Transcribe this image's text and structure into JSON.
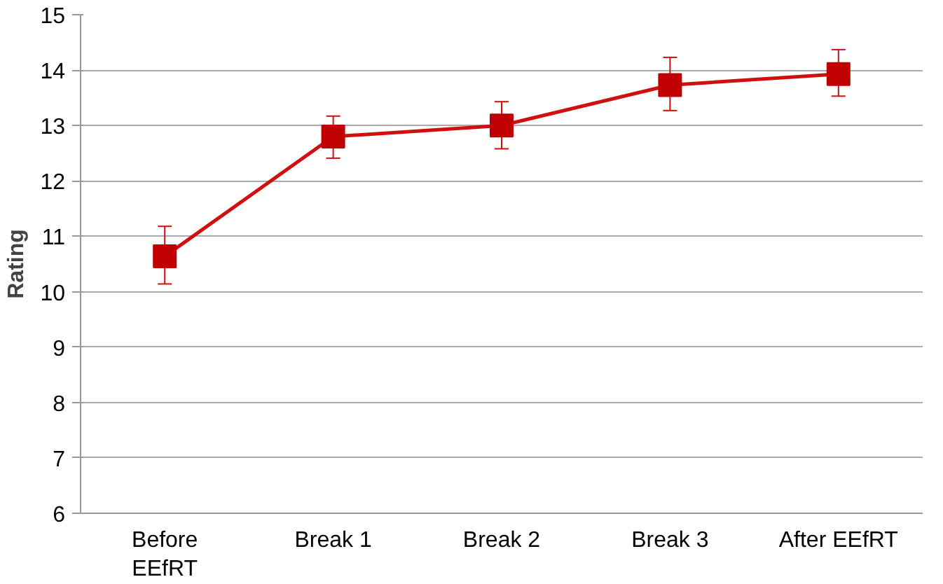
{
  "chart_data": {
    "type": "line",
    "ylabel": "Rating",
    "categories": [
      "Before EEfRT",
      "Break 1",
      "Break 2",
      "Break 3",
      "After EEfRT"
    ],
    "series": [
      {
        "color": "#d01010",
        "values": [
          10.64,
          12.8,
          13.0,
          13.73,
          13.93
        ],
        "errors": [
          [
            10.14,
            11.18
          ],
          [
            12.41,
            13.17
          ],
          [
            12.58,
            13.43
          ],
          [
            13.27,
            14.23
          ],
          [
            13.53,
            14.37
          ]
        ]
      }
    ],
    "ylim": [
      6,
      15
    ],
    "yticks": [
      6,
      7,
      8,
      9,
      10,
      11,
      12,
      13,
      14,
      15
    ],
    "grid": "y",
    "marker": "square",
    "line_style": "solid"
  }
}
